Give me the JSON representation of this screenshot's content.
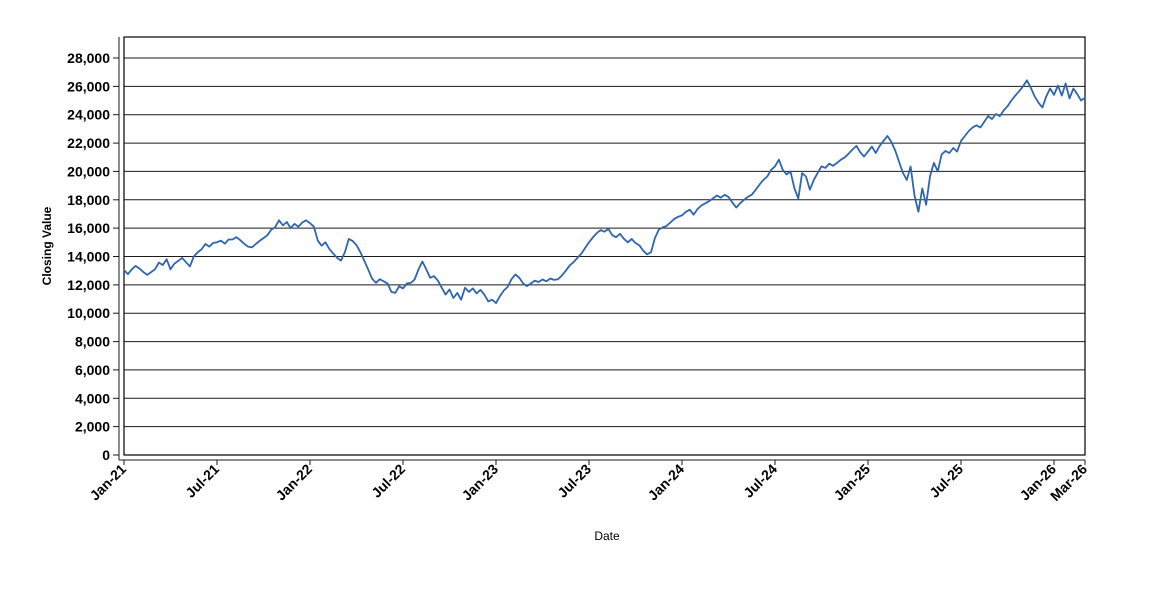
{
  "chart": {
    "background_color": "#ffffff",
    "frame_color": "#000000",
    "grid_color": "#1a1a1a",
    "axis_color": "#1a1a1a",
    "text_color": "#000000",
    "line_color": "#2d66ad"
  },
  "chart_data": {
    "type": "line",
    "title": "",
    "xlabel": "Date",
    "ylabel": "Closing Value",
    "grid": "horizontal-only",
    "legend": "none",
    "x_axis": {
      "start": "Jan-21",
      "end": "Mar-26",
      "total_months": 62,
      "tick_labels": [
        "Jan-21",
        "Jul-21",
        "Jan-22",
        "Jul-22",
        "Jan-23",
        "Jul-23",
        "Jan-24",
        "Jul-24",
        "Jan-25",
        "Jul-25",
        "Jan-26",
        "Mar-26"
      ],
      "tick_month_index": [
        0,
        6,
        12,
        18,
        24,
        30,
        36,
        42,
        48,
        54,
        60,
        62
      ]
    },
    "y_axis": {
      "min": 0,
      "max_tick": 28000,
      "tick_step": 2000,
      "plot_top_value": 29500,
      "tick_labels": [
        "0",
        "2,000",
        "4,000",
        "6,000",
        "8,000",
        "10,000",
        "12,000",
        "14,000",
        "16,000",
        "18,000",
        "20,000",
        "22,000",
        "24,000",
        "26,000",
        "28,000"
      ],
      "tick_values": [
        0,
        2000,
        4000,
        6000,
        8000,
        10000,
        12000,
        14000,
        16000,
        18000,
        20000,
        22000,
        24000,
        26000,
        28000
      ]
    },
    "series": [
      {
        "name": "Closing Value",
        "color": "#2d66ad",
        "points_per_month": 4,
        "values": [
          13050,
          12750,
          13100,
          13340,
          13150,
          12900,
          12700,
          12900,
          13100,
          13570,
          13400,
          13810,
          13100,
          13500,
          13690,
          13900,
          13600,
          13300,
          14000,
          14290,
          14500,
          14880,
          14700,
          14950,
          15000,
          15120,
          14900,
          15200,
          15200,
          15360,
          15150,
          14900,
          14700,
          14640,
          14880,
          15100,
          15300,
          15500,
          15900,
          16070,
          16550,
          16200,
          16430,
          16000,
          16300,
          16100,
          16400,
          16550,
          16350,
          16100,
          15120,
          14760,
          15000,
          14520,
          14200,
          13900,
          13713,
          14300,
          15240,
          15100,
          14800,
          14300,
          13700,
          13100,
          12450,
          12143,
          12400,
          12250,
          12100,
          11500,
          11430,
          11900,
          11750,
          12100,
          12140,
          12380,
          13090,
          13650,
          13090,
          12500,
          12620,
          12300,
          11790,
          11310,
          11670,
          11070,
          11430,
          10950,
          11790,
          11500,
          11750,
          11400,
          11650,
          11300,
          10830,
          10950,
          10714,
          11200,
          11600,
          11850,
          12400,
          12736,
          12500,
          12100,
          11907,
          12100,
          12300,
          12200,
          12380,
          12250,
          12450,
          12350,
          12400,
          12650,
          13000,
          13357,
          13600,
          13900,
          14200,
          14600,
          15000,
          15350,
          15650,
          15860,
          15750,
          15950,
          15500,
          15360,
          15600,
          15250,
          15000,
          15240,
          14950,
          14780,
          14400,
          14150,
          14300,
          15300,
          15900,
          16050,
          16150,
          16400,
          16650,
          16800,
          16900,
          17150,
          17300,
          16950,
          17350,
          17600,
          17750,
          17900,
          18100,
          18300,
          18150,
          18350,
          18200,
          17800,
          17450,
          17750,
          18000,
          18200,
          18360,
          18700,
          19070,
          19400,
          19640,
          20100,
          20360,
          20830,
          20100,
          19790,
          20000,
          18810,
          18090,
          19880,
          19640,
          18710,
          19400,
          19880,
          20360,
          20250,
          20550,
          20400,
          20600,
          20830,
          21000,
          21250,
          21550,
          21800,
          21350,
          21050,
          21400,
          21750,
          21300,
          21800,
          22150,
          22500,
          22100,
          21500,
          20700,
          19900,
          19400,
          20350,
          18300,
          17150,
          18800,
          17650,
          19650,
          20600,
          20000,
          21200,
          21450,
          21300,
          21650,
          21400,
          22150,
          22500,
          22850,
          23100,
          23250,
          23100,
          23500,
          23900,
          23700,
          24050,
          23900,
          24300,
          24600,
          25000,
          25350,
          25650,
          26000,
          26430,
          25900,
          25300,
          24850,
          24500,
          25300,
          25850,
          25400,
          26050,
          25350,
          26200,
          25150,
          25850,
          25450,
          25000,
          25200
        ]
      }
    ]
  }
}
